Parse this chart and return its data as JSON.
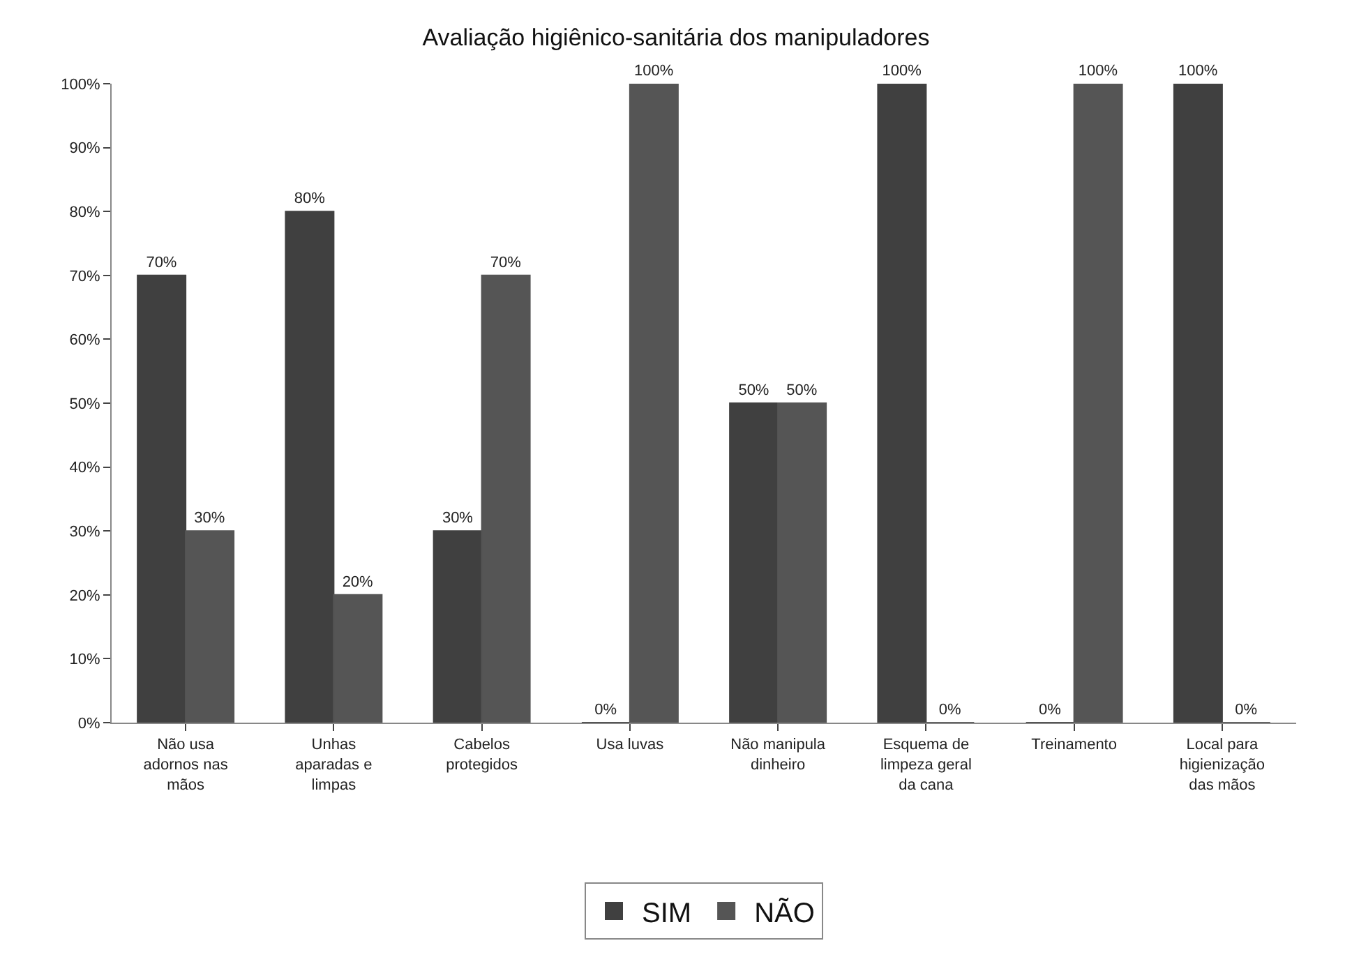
{
  "chart_data": {
    "type": "bar",
    "title": "Avaliação higiênico-sanitária dos manipuladores",
    "categories": [
      "Não usa adornos nas mãos",
      "Unhas aparadas e limpas",
      "Cabelos protegidos",
      "Usa luvas",
      "Não manipula dinheiro",
      "Esquema de limpeza geral da cana",
      "Treinamento",
      "Local para higienização das mãos"
    ],
    "series": [
      {
        "name": "SIM",
        "color": "#404040",
        "values": [
          70,
          80,
          30,
          0,
          50,
          100,
          0,
          100
        ],
        "value_labels": [
          "70%",
          "80%",
          "30%",
          "0%",
          "50%",
          "100%",
          "0%",
          "100%"
        ]
      },
      {
        "name": "NÃO",
        "color": "#555555",
        "values": [
          30,
          20,
          70,
          100,
          50,
          0,
          100,
          0
        ],
        "value_labels": [
          "30%",
          "20%",
          "70%",
          "100%",
          "50%",
          "0%",
          "100%",
          "0%"
        ]
      }
    ],
    "ylim": [
      0,
      100
    ],
    "yticks": [
      {
        "value": 0,
        "label": "0%"
      },
      {
        "value": 10,
        "label": "10%"
      },
      {
        "value": 20,
        "label": "20%"
      },
      {
        "value": 30,
        "label": "30%"
      },
      {
        "value": 40,
        "label": "40%"
      },
      {
        "value": 50,
        "label": "50%"
      },
      {
        "value": 60,
        "label": "60%"
      },
      {
        "value": 70,
        "label": "70%"
      },
      {
        "value": 80,
        "label": "80%"
      },
      {
        "value": 90,
        "label": "90%"
      },
      {
        "value": 100,
        "label": "100%"
      }
    ],
    "grid": false,
    "legend": "bottom"
  }
}
